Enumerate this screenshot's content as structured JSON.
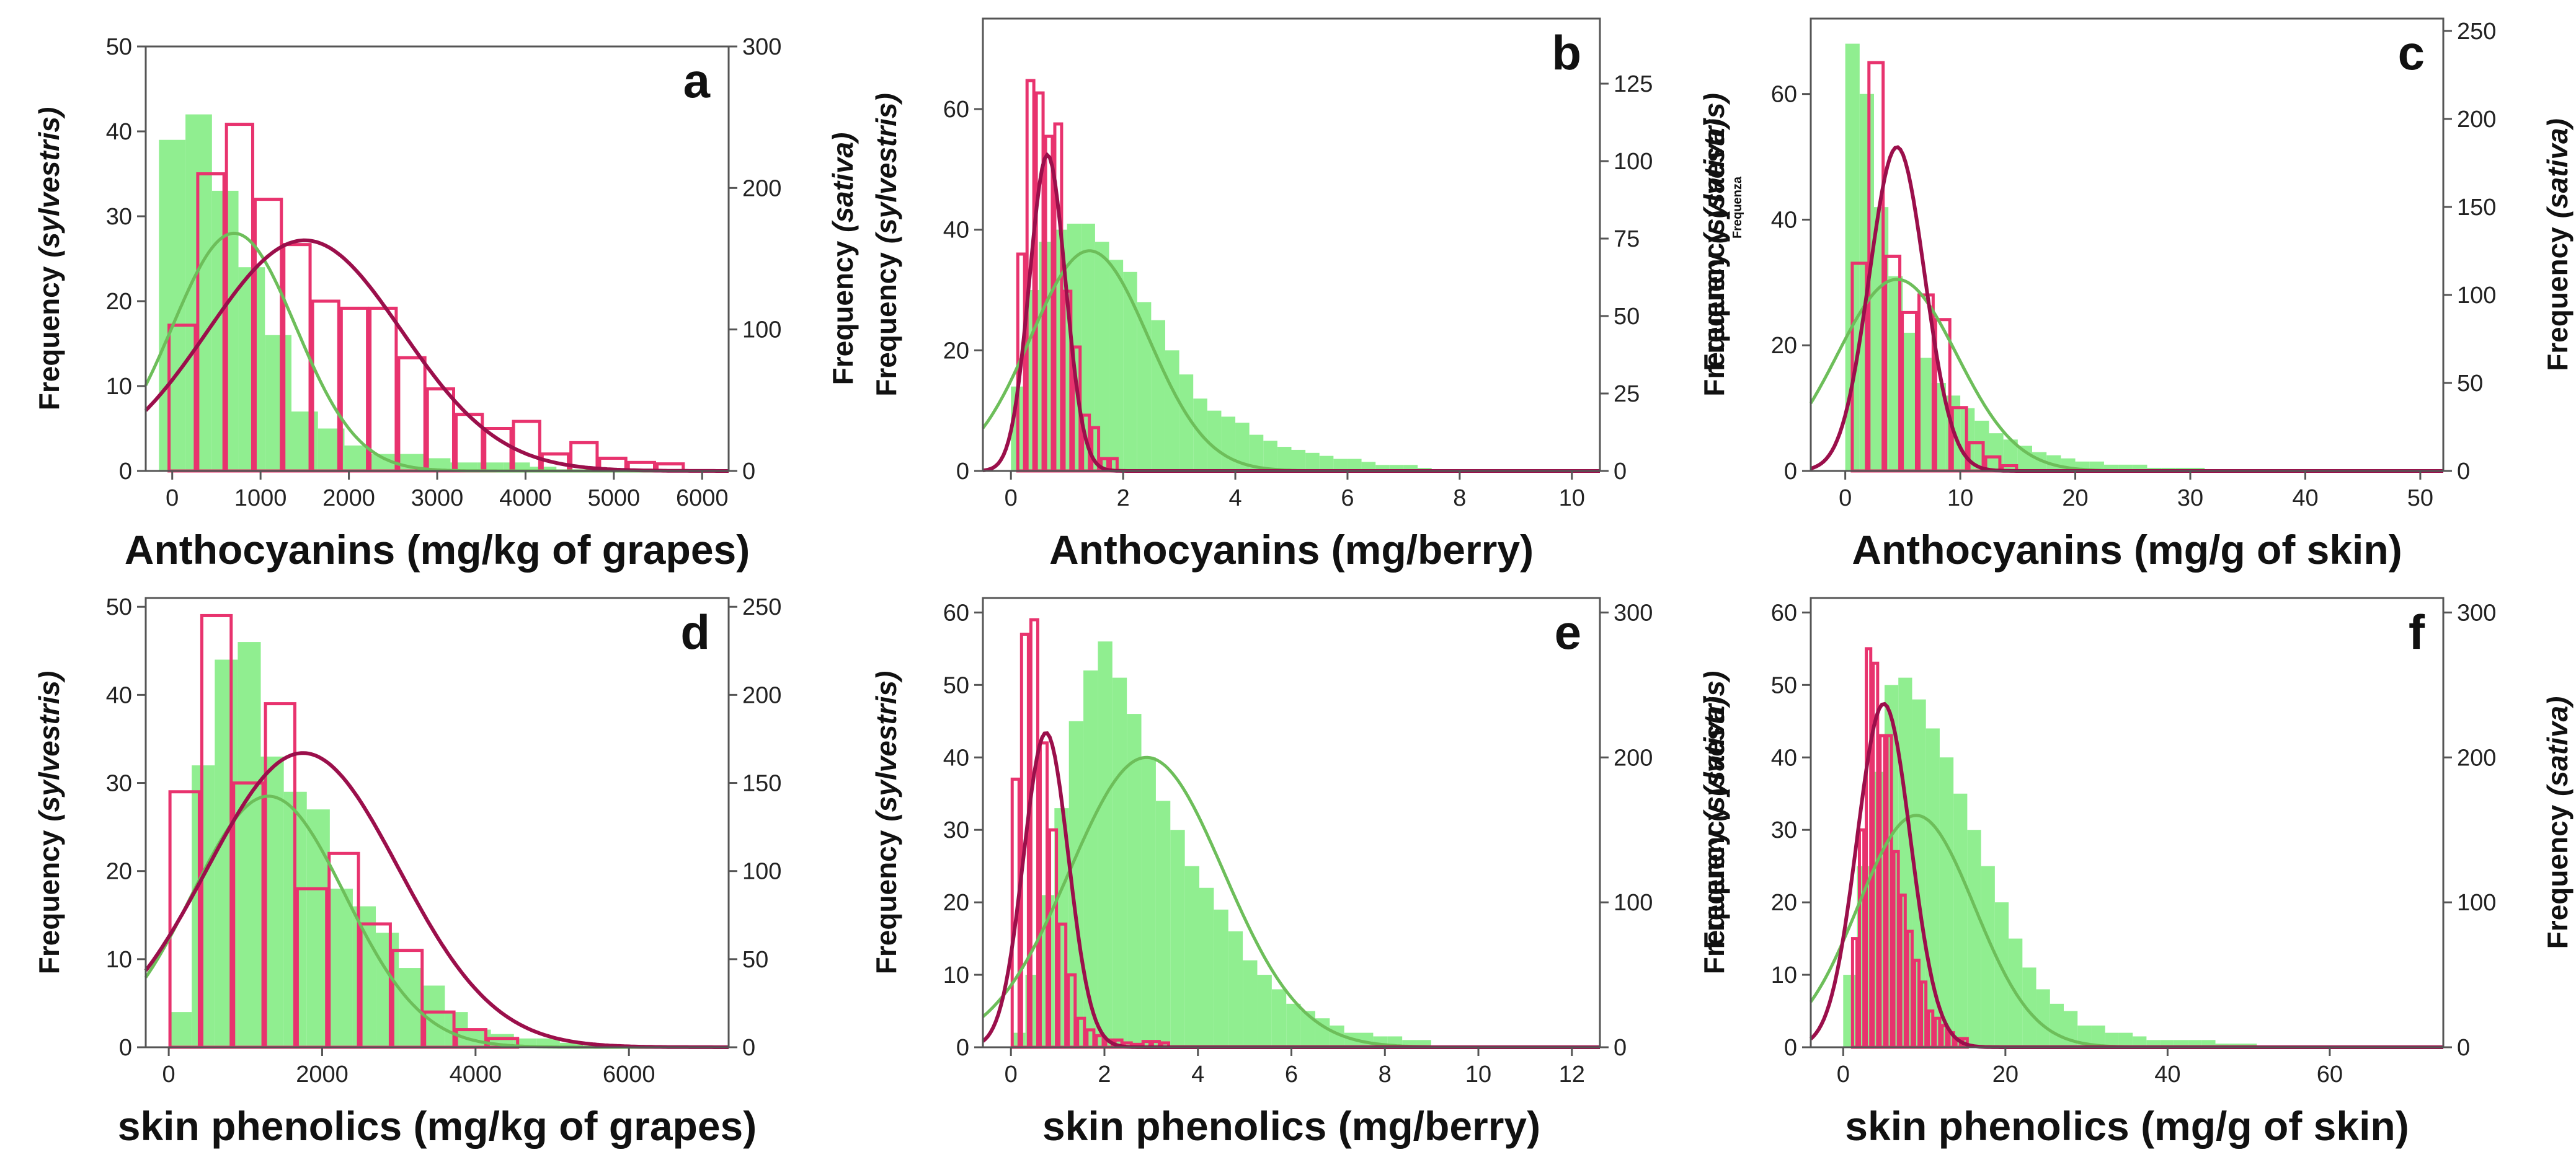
{
  "colors": {
    "sylvestris_fill": "#90EE90",
    "sylvestris_curve": "#6DBE5A",
    "sativa_bar": "#E8336E",
    "sativa_curve": "#9B0F4B",
    "axis": "#555555"
  },
  "chart_data": [
    {
      "panel": "a",
      "type": "bar",
      "xlabel": "Anthocyanins (mg/kg of grapes)",
      "ylabel_left": "Frequency",
      "ylabel_left_italic": "(sylvestris)",
      "ylabel_right": "Frequency",
      "ylabel_right_italic": "(sativa)",
      "xlim": [
        -300,
        6300
      ],
      "ylim_left": [
        0,
        50
      ],
      "ylim_right": [
        0,
        300
      ],
      "xticks": [
        0,
        1000,
        2000,
        3000,
        4000,
        5000,
        6000
      ],
      "yticks_left": [
        0,
        10,
        20,
        30,
        40,
        50
      ],
      "yticks_right": [
        0,
        100,
        200,
        300
      ],
      "series": [
        {
          "name": "sylvestris",
          "axis": "left",
          "style": "filled-histogram",
          "bin_start": -150,
          "bin_width": 300,
          "values": [
            39,
            42,
            33,
            24,
            16,
            7,
            5,
            3,
            2,
            2,
            1.5,
            1,
            1,
            1,
            0.5
          ],
          "curve": {
            "mean": 700,
            "sd": 700,
            "peak": 28
          }
        },
        {
          "name": "sativa",
          "axis": "right",
          "style": "outlined-histogram",
          "bin_start": -50,
          "bin_width": 325,
          "values": [
            103,
            210,
            245,
            192,
            160,
            120,
            115,
            115,
            80,
            58,
            40,
            30,
            35,
            12,
            20,
            9,
            6,
            5
          ],
          "curve": {
            "mean": 1500,
            "sd": 1100,
            "peak": 163
          }
        }
      ]
    },
    {
      "panel": "b",
      "type": "bar",
      "xlabel": "Anthocyanins (mg/berry)",
      "ylabel_left": "Frequency",
      "ylabel_left_italic": "(sylvestris)",
      "ylabel_right": "Frequency",
      "ylabel_right_italic": "(sativa)",
      "xlim": [
        -0.5,
        10.5
      ],
      "ylim_left": [
        0,
        75
      ],
      "ylim_right": [
        0,
        146
      ],
      "xticks": [
        0,
        2,
        4,
        6,
        8,
        10
      ],
      "yticks_left": [
        0,
        20,
        40,
        60
      ],
      "yticks_right": [
        0,
        25,
        50,
        75,
        100,
        125
      ],
      "series": [
        {
          "name": "sylvestris",
          "axis": "left",
          "style": "filled-histogram",
          "bin_start": 0,
          "bin_width": 0.25,
          "values": [
            14,
            30,
            38,
            40,
            41,
            41,
            38,
            35,
            33,
            28,
            25,
            20,
            16,
            12,
            10,
            9,
            8,
            6,
            5,
            4,
            3.5,
            3,
            2.5,
            2,
            2,
            1.5,
            1,
            1,
            1,
            0.5
          ],
          "curve": {
            "mean": 1.4,
            "sd": 1.05,
            "peak": 36.5
          }
        },
        {
          "name": "sativa",
          "axis": "right",
          "style": "outlined-histogram",
          "bin_start": 0.1,
          "bin_width": 0.165,
          "values": [
            70,
            126,
            122,
            108,
            112,
            58,
            40,
            18,
            14,
            4,
            4
          ],
          "curve": {
            "mean": 0.65,
            "sd": 0.32,
            "peak": 102
          }
        }
      ]
    },
    {
      "panel": "c",
      "type": "bar",
      "xlabel": "Anthocyanins (mg/g of skin)",
      "ylabel_left": "Frequency",
      "ylabel_left_italic": "(sylvestris)",
      "ylabel_left_small": "Frequenza",
      "ylabel_right": "Frequency",
      "ylabel_right_italic": "(sativa)",
      "xlim": [
        -3,
        52
      ],
      "ylim_left": [
        0,
        72
      ],
      "ylim_right": [
        0,
        257
      ],
      "xticks": [
        0,
        10,
        20,
        30,
        40,
        50
      ],
      "yticks_left": [
        0,
        20,
        40,
        60
      ],
      "yticks_right": [
        0,
        50,
        100,
        150,
        200,
        250
      ],
      "series": [
        {
          "name": "sylvestris",
          "axis": "left",
          "style": "filled-histogram",
          "bin_start": 0,
          "bin_width": 1.25,
          "values": [
            68,
            60,
            42,
            31,
            22,
            18,
            14,
            12,
            10,
            8,
            6,
            5,
            4,
            3,
            2.5,
            2,
            1.5,
            1.5,
            1,
            1,
            1,
            0.5,
            0.5,
            0.5,
            0.5
          ],
          "curve": {
            "mean": 4.5,
            "sd": 5.2,
            "peak": 30.5
          }
        },
        {
          "name": "sativa",
          "axis": "right",
          "style": "outlined-histogram",
          "bin_start": 0.5,
          "bin_width": 1.45,
          "values": [
            118,
            232,
            122,
            90,
            100,
            86,
            36,
            16,
            8,
            3
          ],
          "curve": {
            "mean": 4.5,
            "sd": 2.4,
            "peak": 184
          }
        }
      ]
    },
    {
      "panel": "d",
      "type": "bar",
      "xlabel": "skin phenolics (mg/kg of grapes)",
      "ylabel_left": "Frequency",
      "ylabel_left_italic": "(sylvestris)",
      "ylabel_right": "",
      "ylabel_right_italic": "",
      "xlim": [
        -300,
        7300
      ],
      "ylim_left": [
        0,
        51
      ],
      "ylim_right": [
        0,
        255
      ],
      "xticks": [
        0,
        2000,
        4000,
        6000
      ],
      "yticks_left": [
        0,
        10,
        20,
        30,
        40,
        50
      ],
      "yticks_right": [
        0,
        50,
        100,
        150,
        200,
        250
      ],
      "series": [
        {
          "name": "sylvestris",
          "axis": "left",
          "style": "filled-histogram",
          "bin_start": 0,
          "bin_width": 300,
          "values": [
            4,
            32,
            44,
            46,
            33,
            29,
            27,
            18,
            16,
            13,
            9,
            7,
            4,
            2,
            1.5,
            1,
            1,
            0.5
          ],
          "curve": {
            "mean": 1300,
            "sd": 1000,
            "peak": 28.5
          }
        },
        {
          "name": "sativa",
          "axis": "right",
          "style": "outlined-histogram",
          "bin_start": 0,
          "bin_width": 415,
          "values": [
            145,
            245,
            150,
            195,
            90,
            110,
            70,
            55,
            20,
            10,
            5
          ],
          "curve": {
            "mean": 1750,
            "sd": 1250,
            "peak": 167
          }
        }
      ]
    },
    {
      "panel": "e",
      "type": "bar",
      "xlabel": "skin phenolics (mg/berry)",
      "ylabel_left": "Frequency",
      "ylabel_left_italic": "(sylvestris)",
      "ylabel_right": "Frequency",
      "ylabel_right_italic": "(sativa)",
      "xlim": [
        -0.6,
        12.6
      ],
      "ylim_left": [
        0,
        62
      ],
      "ylim_right": [
        0,
        310
      ],
      "xticks": [
        0,
        2,
        4,
        6,
        8,
        10,
        12
      ],
      "yticks_left": [
        0,
        10,
        20,
        30,
        40,
        50,
        60
      ],
      "yticks_right": [
        0,
        100,
        200,
        300
      ],
      "series": [
        {
          "name": "sylvestris",
          "axis": "left",
          "style": "filled-histogram",
          "bin_start": 0,
          "bin_width": 0.31,
          "values": [
            2,
            10,
            21,
            33,
            45,
            52,
            56,
            51,
            46,
            40,
            34,
            30,
            25,
            22,
            19,
            16,
            12,
            10,
            8,
            6,
            5,
            4,
            3,
            2,
            2,
            1.5,
            1.5,
            1,
            1
          ],
          "curve": {
            "mean": 2.9,
            "sd": 1.65,
            "peak": 40
          }
        },
        {
          "name": "sativa",
          "axis": "right",
          "style": "outlined-histogram",
          "bin_start": 0,
          "bin_width": 0.2,
          "values": [
            185,
            285,
            295,
            210,
            150,
            85,
            50,
            20,
            12,
            8,
            5,
            5,
            3,
            2,
            4,
            4,
            3
          ],
          "curve": {
            "mean": 0.75,
            "sd": 0.48,
            "peak": 217
          }
        }
      ]
    },
    {
      "panel": "f",
      "type": "bar",
      "xlabel": "skin phenolics (mg/g of skin)",
      "ylabel_left": "Frequency",
      "ylabel_left_italic": "(sylvestris)",
      "ylabel_right": "Frequency",
      "ylabel_right_italic": "(sativa)",
      "xlim": [
        -4,
        74
      ],
      "ylim_left": [
        0,
        62
      ],
      "ylim_right": [
        0,
        310
      ],
      "xticks": [
        0,
        20,
        40,
        60
      ],
      "yticks_left": [
        0,
        10,
        20,
        30,
        40,
        50,
        60
      ],
      "yticks_right": [
        0,
        100,
        200,
        300
      ],
      "series": [
        {
          "name": "sylvestris",
          "axis": "left",
          "style": "filled-histogram",
          "bin_start": 0,
          "bin_width": 1.7,
          "values": [
            10,
            25,
            38,
            50,
            51,
            48,
            44,
            40,
            35,
            30,
            25,
            20,
            15,
            11,
            8,
            6,
            5,
            3,
            3,
            2,
            2,
            1.5,
            1,
            1,
            1,
            1,
            1,
            0.5,
            0.5,
            0.5
          ],
          "curve": {
            "mean": 9,
            "sd": 7.2,
            "peak": 32
          }
        },
        {
          "name": "sativa",
          "axis": "right",
          "style": "outlined-histogram",
          "bin_start": 1,
          "bin_width": 0.85,
          "values": [
            75,
            150,
            275,
            265,
            215,
            215,
            135,
            105,
            80,
            60,
            45,
            25,
            20,
            15,
            10,
            6,
            6
          ],
          "curve": {
            "mean": 5,
            "sd": 3.3,
            "peak": 237
          }
        }
      ]
    }
  ]
}
